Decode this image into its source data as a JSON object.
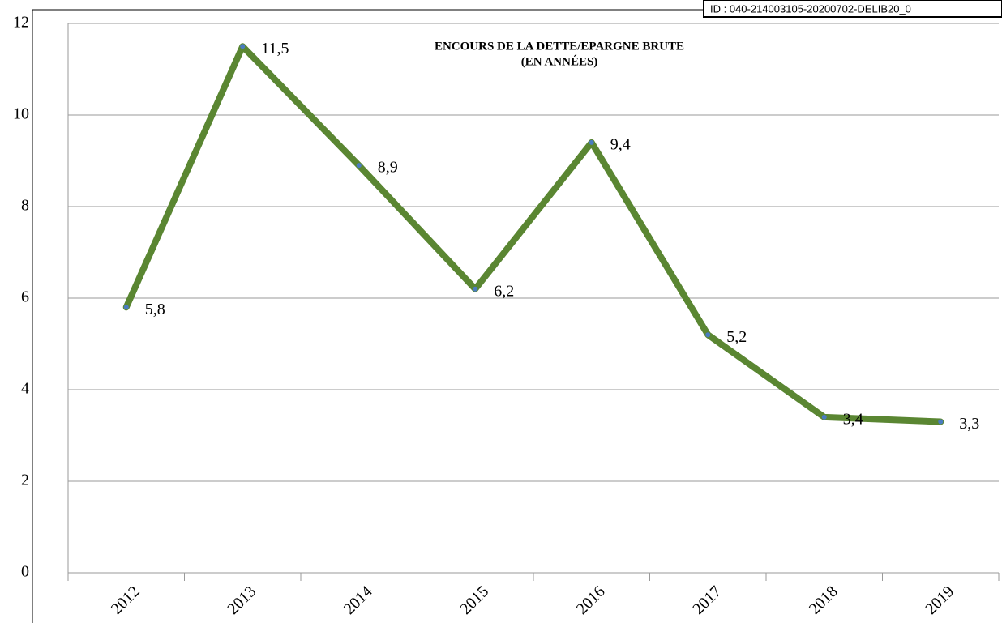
{
  "chart_data": {
    "type": "line",
    "title_lines": [
      "ENCOURS DE LA DETTE/EPARGNE BRUTE",
      "(EN ANNÉES)"
    ],
    "annotation": "ID : 040-214003105-20200702-DELIB20_0",
    "categories": [
      "2012",
      "2013",
      "2014",
      "2015",
      "2016",
      "2017",
      "2018",
      "2019"
    ],
    "series": [
      {
        "name": "Encours de la dette/épargne brute",
        "color": "#5a8632",
        "values": [
          5.8,
          11.5,
          8.9,
          6.2,
          9.4,
          5.2,
          3.4,
          3.3
        ],
        "value_labels": [
          "5,8",
          "11,5",
          "8,9",
          "6,2",
          "9,4",
          "5,2",
          "3,4",
          "3,3"
        ]
      }
    ],
    "ylim": [
      0,
      12
    ],
    "yticks": [
      0,
      2,
      4,
      6,
      8,
      10,
      12
    ],
    "grid": true
  }
}
